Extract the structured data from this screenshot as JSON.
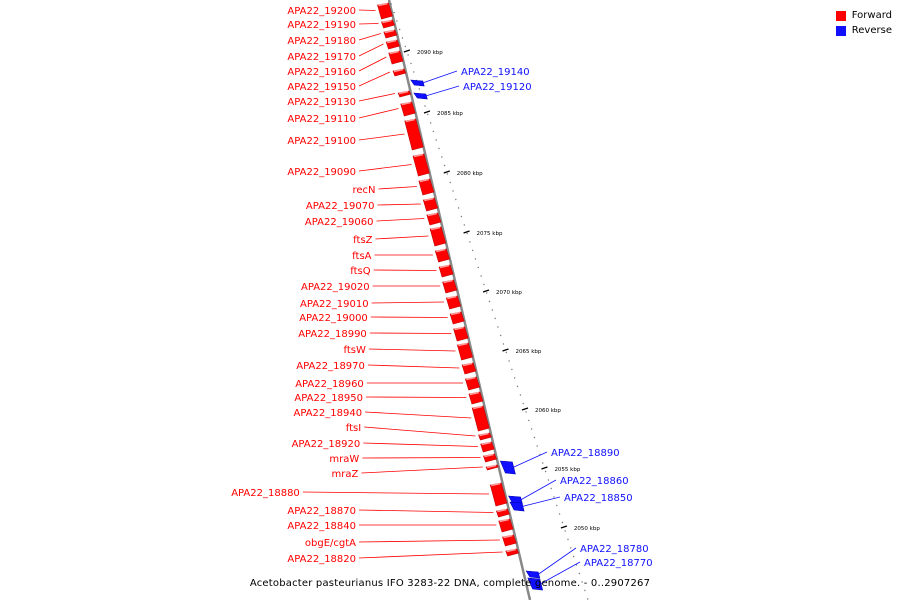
{
  "title": "Acetobacter pasteurianus IFO 3283-22 DNA, complete genome. - 0..2907267",
  "legend": [
    {
      "label": "Forward",
      "color": "#ff0000"
    },
    {
      "label": "Reverse",
      "color": "#1010ff"
    }
  ],
  "colors": {
    "forward": "#ff0000",
    "reverse": "#1010ff",
    "backbone": "#888888"
  },
  "ticks": [
    "2090 kbp",
    "2085 kbp",
    "2080 kbp",
    "2075 kbp",
    "2070 kbp",
    "2065 kbp",
    "2060 kbp",
    "2055 kbp",
    "2050 kbp"
  ],
  "genes_forward": [
    "APA22_19200",
    "APA22_19190",
    "APA22_19180",
    "APA22_19170",
    "APA22_19160",
    "APA22_19150",
    "APA22_19130",
    "APA22_19110",
    "APA22_19100",
    "APA22_19090",
    "recN",
    "APA22_19070",
    "APA22_19060",
    "ftsZ",
    "ftsA",
    "ftsQ",
    "APA22_19020",
    "APA22_19010",
    "APA22_19000",
    "APA22_18990",
    "ftsW",
    "APA22_18970",
    "APA22_18960",
    "APA22_18950",
    "APA22_18940",
    "ftsI",
    "APA22_18920",
    "mraW",
    "mraZ",
    "APA22_18880",
    "APA22_18870",
    "APA22_18840",
    "obgE/cgtA",
    "APA22_18820"
  ],
  "genes_reverse": [
    "APA22_19140",
    "APA22_19120",
    "APA22_18890",
    "APA22_18860",
    "APA22_18850",
    "APA22_18780",
    "APA22_18770"
  ]
}
